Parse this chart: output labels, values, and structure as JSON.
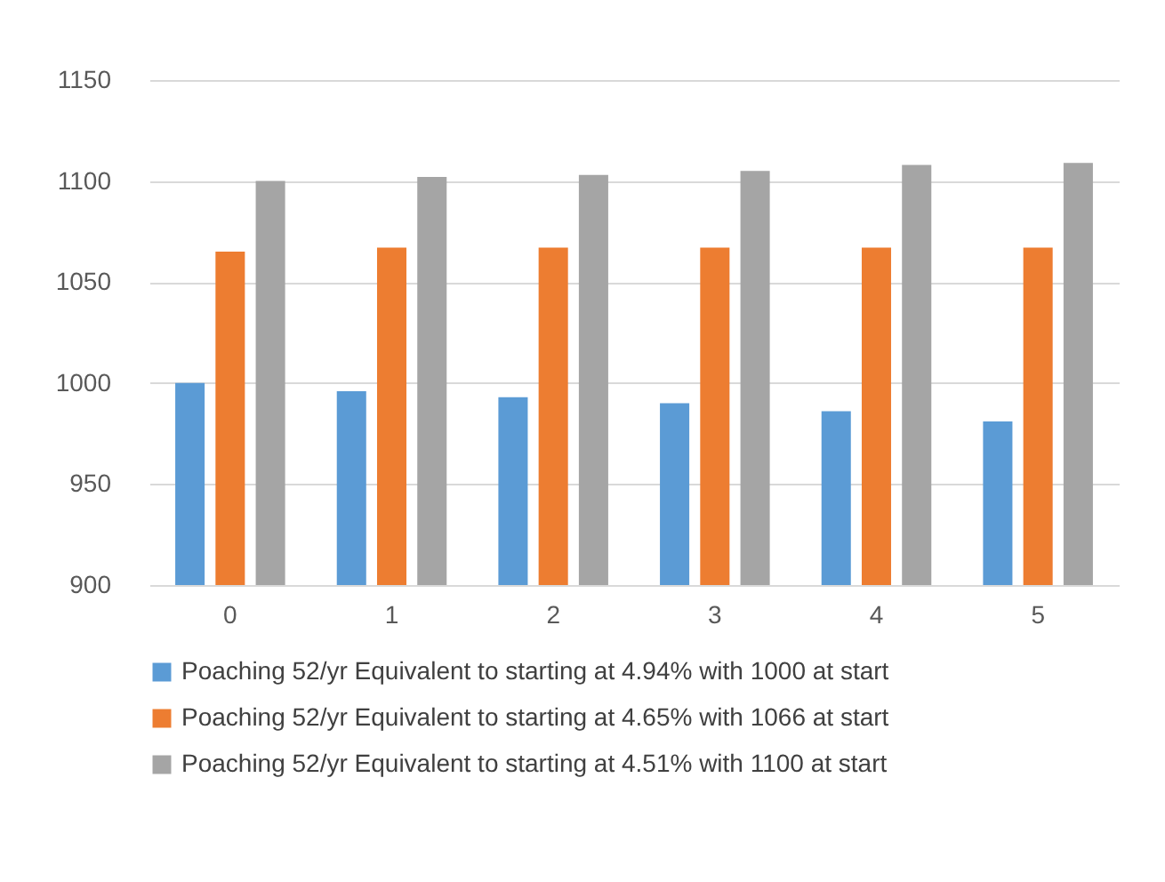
{
  "chart_data": {
    "type": "bar",
    "categories": [
      "0",
      "1",
      "2",
      "3",
      "4",
      "5"
    ],
    "series": [
      {
        "name": "Poaching 52/yr Equivalent to starting at 4.94% with 1000 at start",
        "color": "#5b9bd5",
        "values": [
          1000,
          996,
          993,
          990,
          986,
          981
        ]
      },
      {
        "name": "Poaching 52/yr Equivalent to starting at 4.65% with 1066 at start",
        "color": "#ed7d31",
        "values": [
          1065,
          1067,
          1067,
          1067,
          1067,
          1067
        ]
      },
      {
        "name": "Poaching 52/yr Equivalent to starting at 4.51% with 1100 at start",
        "color": "#a5a5a5",
        "values": [
          1100,
          1102,
          1103,
          1105,
          1108,
          1109
        ]
      }
    ],
    "ylim": [
      900,
      1150
    ],
    "yticks": [
      900,
      950,
      1000,
      1050,
      1100,
      1150
    ],
    "grid": "y",
    "legend": "bottom"
  }
}
